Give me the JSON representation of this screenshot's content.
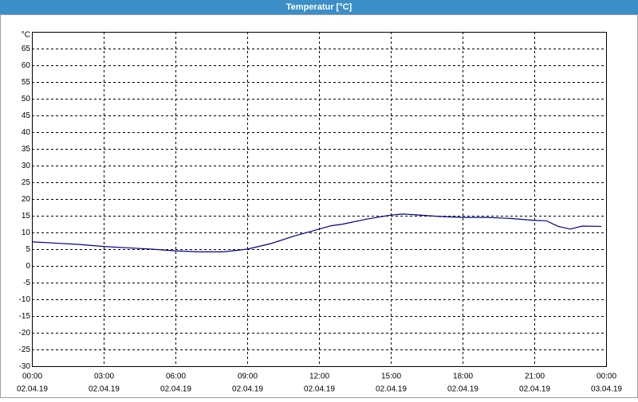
{
  "chart_data": {
    "type": "line",
    "title": "Temperatur [°C]",
    "y_unit": "°C",
    "x": [
      0,
      1,
      2,
      3,
      4,
      5,
      6,
      7,
      8,
      9,
      10,
      11,
      12,
      12.5,
      13,
      14,
      15,
      15.5,
      16,
      17,
      18,
      19,
      20,
      21,
      21.5,
      22,
      22.5,
      23,
      23.8
    ],
    "series": [
      {
        "color": "#00008b",
        "values": [
          7.2,
          6.8,
          6.4,
          5.8,
          5.4,
          5.0,
          4.5,
          4.2,
          4.2,
          5.0,
          6.7,
          9.0,
          11.0,
          12.0,
          12.5,
          14.0,
          15.2,
          15.5,
          15.3,
          14.8,
          14.5,
          14.5,
          14.2,
          13.6,
          13.5,
          11.8,
          11.0,
          11.9,
          11.8
        ]
      }
    ],
    "xlim": [
      0,
      24
    ],
    "xticks": [
      {
        "value": 0,
        "label": "00:00"
      },
      {
        "value": 3,
        "label": "03:00"
      },
      {
        "value": 6,
        "label": "06:00"
      },
      {
        "value": 9,
        "label": "09:00"
      },
      {
        "value": 12,
        "label": "12:00"
      },
      {
        "value": 15,
        "label": "15:00"
      },
      {
        "value": 18,
        "label": "18:00"
      },
      {
        "value": 21,
        "label": "21:00"
      },
      {
        "value": 24,
        "label": "00:00"
      }
    ],
    "xtick_dates": [
      "02.04.19",
      "02.04.19",
      "02.04.19",
      "02.04.19",
      "02.04.19",
      "02.04.19",
      "02.04.19",
      "02.04.19",
      "03.04.19"
    ],
    "ylim": [
      -30,
      70
    ],
    "yticks": [
      -30,
      -25,
      -20,
      -15,
      -10,
      -5,
      0,
      5,
      10,
      15,
      20,
      25,
      30,
      35,
      40,
      45,
      50,
      55,
      60,
      65
    ],
    "grid": true
  }
}
